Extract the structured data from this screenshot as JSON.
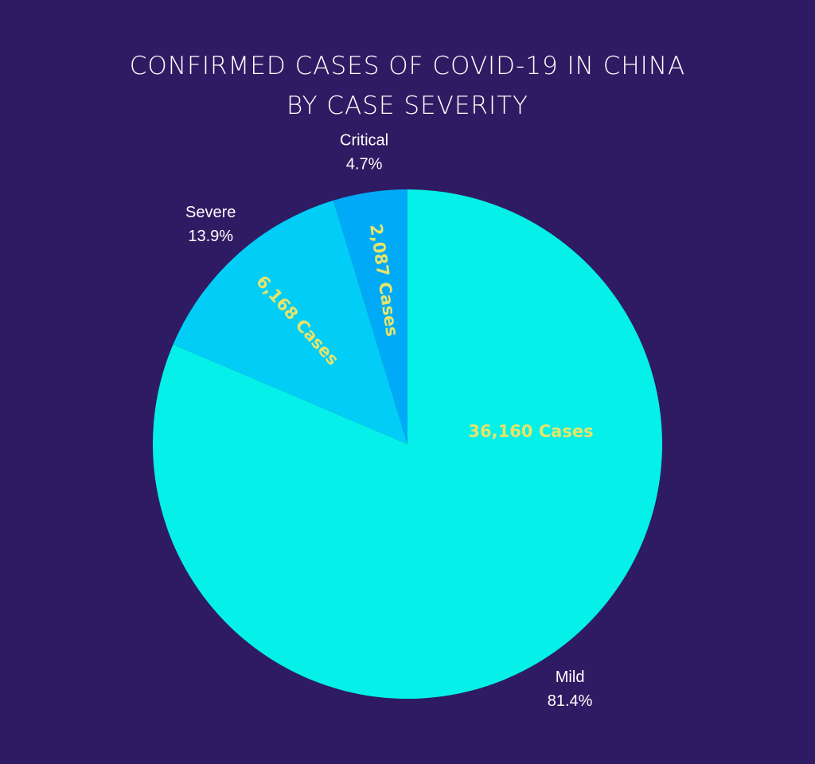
{
  "chart_data": {
    "type": "pie",
    "title": "CONFIRMED CASES OF COVID-19 IN CHINA BY CASE SEVERITY",
    "categories": [
      "Mild",
      "Severe",
      "Critical"
    ],
    "values": [
      81.4,
      13.9,
      4.7
    ],
    "value_labels": [
      "81.4%",
      "13.9%",
      "4.7%"
    ],
    "counts": [
      36160,
      6168,
      2087
    ],
    "count_labels": [
      "36,160 Cases",
      "6,168 Cases",
      "2,087 Cases"
    ],
    "colors": [
      "#05f0e8",
      "#02cdf7",
      "#00aaf6"
    ]
  }
}
